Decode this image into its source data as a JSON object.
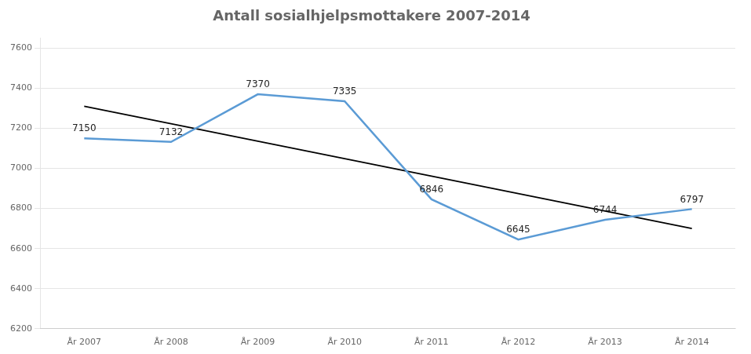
{
  "chart_data": {
    "type": "line",
    "title": "Antall sosialhjelpsmottakere 2007-2014",
    "categories": [
      "År 2007",
      "År 2008",
      "År 2009",
      "År 2010",
      "År 2011",
      "År 2012",
      "År 2013",
      "År 2014"
    ],
    "series": [
      {
        "color": "#5B9BD5",
        "values": [
          7150,
          7132,
          7370,
          7335,
          6846,
          6645,
          6744,
          6797
        ],
        "data_labels": true
      },
      {
        "color": "#000000",
        "values": [
          7310,
          null,
          null,
          null,
          null,
          null,
          null,
          6700
        ]
      }
    ],
    "ylim": [
      6200,
      7650
    ],
    "yticks": [
      6200,
      6400,
      6600,
      6800,
      7000,
      7200,
      7400,
      7600
    ],
    "grid": true
  }
}
